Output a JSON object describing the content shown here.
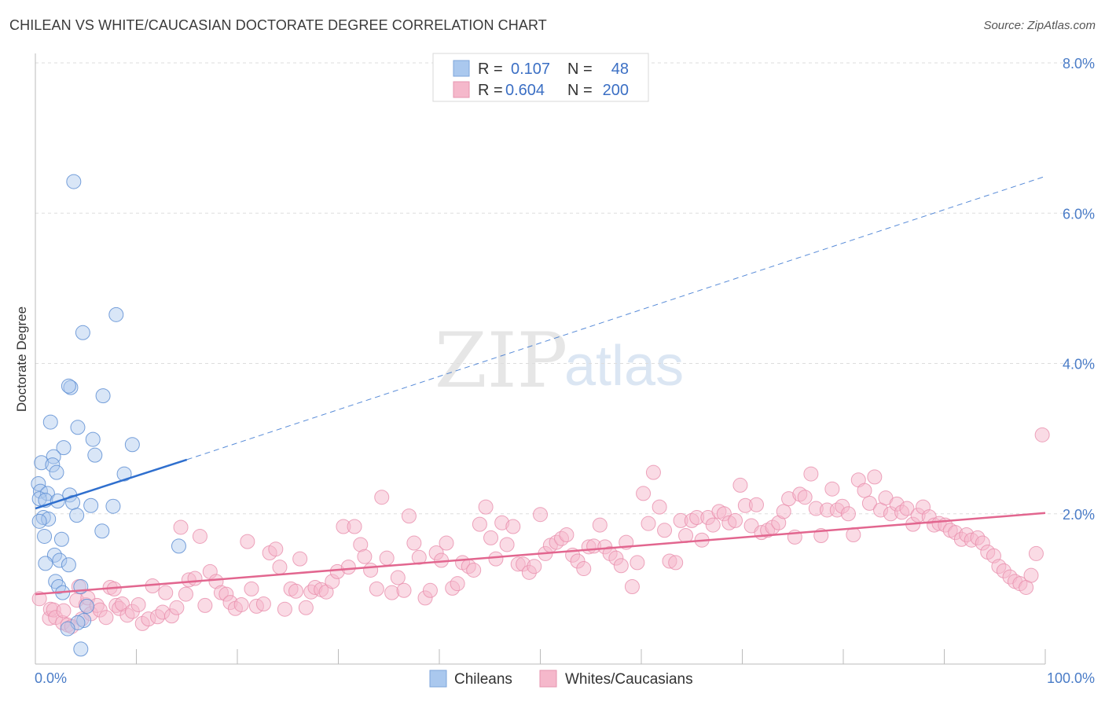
{
  "title": "CHILEAN VS WHITE/CAUCASIAN DOCTORATE DEGREE CORRELATION CHART",
  "source": "Source: ZipAtlas.com",
  "watermark": {
    "zip": "ZIP",
    "atlas": "atlas"
  },
  "colors": {
    "blue": "#4a7cc7",
    "blue_fill": "#aac8ee",
    "blue_line": "#2f6fce",
    "pink_fill": "#f5b8cb",
    "pink_line": "#e2668f",
    "grid": "#dddddd"
  },
  "legend": {
    "rows": [
      {
        "r_label": "R =",
        "r_value": "0.107",
        "n_label": "N =",
        "n_value": "48"
      },
      {
        "r_label": "R =",
        "r_value": "0.604",
        "n_label": "N =",
        "n_value": "200"
      }
    ]
  },
  "bottom_legend": {
    "items": [
      "Chileans",
      "Whites/Caucasians"
    ]
  },
  "chart_data": {
    "type": "scatter",
    "xlabel": "",
    "ylabel": "Doctorate Degree",
    "xlim": [
      0,
      100
    ],
    "ylim": [
      0,
      8.4
    ],
    "x_tick_labels": [
      "0.0%",
      "100.0%"
    ],
    "y_ticks": [
      2,
      4,
      6,
      8
    ],
    "y_tick_labels": [
      "2.0%",
      "4.0%",
      "6.0%",
      "8.0%"
    ],
    "grid": true,
    "legend_position": "top-center",
    "series": [
      {
        "name": "Chileans",
        "trend": {
          "x": [
            0,
            15
          ],
          "y": [
            2.07,
            2.72
          ],
          "extended_x": [
            15,
            100
          ],
          "extended_y": [
            2.72,
            6.49
          ]
        },
        "points": [
          [
            3.8,
            6.42
          ],
          [
            8.0,
            4.65
          ],
          [
            4.7,
            4.41
          ],
          [
            3.5,
            3.68
          ],
          [
            3.3,
            3.7
          ],
          [
            6.7,
            3.57
          ],
          [
            1.5,
            3.22
          ],
          [
            4.2,
            3.15
          ],
          [
            5.7,
            2.99
          ],
          [
            9.6,
            2.92
          ],
          [
            2.8,
            2.88
          ],
          [
            1.8,
            2.76
          ],
          [
            5.9,
            2.78
          ],
          [
            0.6,
            2.68
          ],
          [
            1.7,
            2.65
          ],
          [
            2.1,
            2.55
          ],
          [
            8.8,
            2.53
          ],
          [
            0.3,
            2.4
          ],
          [
            0.5,
            2.3
          ],
          [
            1.2,
            2.27
          ],
          [
            0.4,
            2.2
          ],
          [
            1.0,
            2.18
          ],
          [
            2.2,
            2.17
          ],
          [
            3.4,
            2.25
          ],
          [
            3.7,
            2.15
          ],
          [
            5.5,
            2.11
          ],
          [
            7.7,
            2.1
          ],
          [
            4.1,
            1.98
          ],
          [
            0.8,
            1.95
          ],
          [
            1.3,
            1.93
          ],
          [
            0.4,
            1.9
          ],
          [
            6.6,
            1.77
          ],
          [
            0.9,
            1.7
          ],
          [
            2.6,
            1.66
          ],
          [
            14.2,
            1.57
          ],
          [
            1.9,
            1.45
          ],
          [
            2.4,
            1.38
          ],
          [
            1.0,
            1.34
          ],
          [
            3.3,
            1.32
          ],
          [
            2.0,
            1.1
          ],
          [
            2.3,
            1.03
          ],
          [
            4.5,
            1.03
          ],
          [
            2.7,
            0.95
          ],
          [
            5.1,
            0.77
          ],
          [
            4.8,
            0.58
          ],
          [
            4.2,
            0.55
          ],
          [
            3.2,
            0.47
          ],
          [
            4.5,
            0.2
          ]
        ]
      },
      {
        "name": "Whites/Caucasians",
        "trend": {
          "x": [
            0,
            100
          ],
          "y": [
            0.93,
            2.01
          ]
        },
        "points": [
          [
            0.4,
            0.87
          ],
          [
            1.4,
            0.61
          ],
          [
            1.5,
            0.73
          ],
          [
            1.8,
            0.72
          ],
          [
            2.0,
            0.62
          ],
          [
            2.7,
            0.55
          ],
          [
            2.8,
            0.71
          ],
          [
            3.2,
            0.52
          ],
          [
            3.6,
            0.5
          ],
          [
            4.1,
            0.85
          ],
          [
            4.3,
            1.03
          ],
          [
            4.6,
            0.6
          ],
          [
            5.0,
            0.79
          ],
          [
            5.2,
            0.88
          ],
          [
            5.5,
            0.67
          ],
          [
            6.1,
            0.78
          ],
          [
            6.4,
            0.72
          ],
          [
            7.0,
            0.62
          ],
          [
            7.4,
            1.02
          ],
          [
            7.8,
            1.0
          ],
          [
            8.0,
            0.78
          ],
          [
            8.3,
            0.74
          ],
          [
            8.6,
            0.8
          ],
          [
            9.1,
            0.65
          ],
          [
            9.6,
            0.7
          ],
          [
            10.2,
            0.79
          ],
          [
            10.6,
            0.54
          ],
          [
            11.2,
            0.6
          ],
          [
            11.6,
            1.04
          ],
          [
            12.1,
            0.63
          ],
          [
            12.6,
            0.69
          ],
          [
            12.9,
            0.95
          ],
          [
            13.5,
            0.64
          ],
          [
            14.0,
            0.75
          ],
          [
            14.4,
            1.82
          ],
          [
            14.9,
            0.93
          ],
          [
            15.2,
            1.12
          ],
          [
            15.8,
            1.14
          ],
          [
            16.3,
            1.7
          ],
          [
            16.8,
            0.78
          ],
          [
            17.3,
            1.23
          ],
          [
            17.9,
            1.1
          ],
          [
            18.4,
            0.95
          ],
          [
            18.9,
            0.93
          ],
          [
            19.3,
            0.82
          ],
          [
            19.8,
            0.74
          ],
          [
            20.4,
            0.79
          ],
          [
            21.0,
            1.63
          ],
          [
            21.4,
            1.0
          ],
          [
            21.9,
            0.77
          ],
          [
            22.6,
            0.8
          ],
          [
            23.2,
            1.48
          ],
          [
            23.8,
            1.53
          ],
          [
            24.2,
            1.29
          ],
          [
            24.7,
            0.73
          ],
          [
            25.3,
            1.0
          ],
          [
            25.8,
            0.97
          ],
          [
            26.2,
            1.4
          ],
          [
            26.8,
            0.75
          ],
          [
            27.3,
            0.96
          ],
          [
            27.7,
            1.02
          ],
          [
            28.3,
            0.99
          ],
          [
            28.8,
            0.96
          ],
          [
            29.4,
            1.1
          ],
          [
            29.9,
            1.23
          ],
          [
            30.5,
            1.83
          ],
          [
            31.0,
            1.29
          ],
          [
            31.6,
            1.83
          ],
          [
            32.2,
            1.59
          ],
          [
            32.6,
            1.43
          ],
          [
            33.2,
            1.25
          ],
          [
            33.8,
            1.0
          ],
          [
            34.3,
            2.22
          ],
          [
            34.8,
            1.41
          ],
          [
            35.3,
            0.95
          ],
          [
            35.9,
            1.15
          ],
          [
            36.5,
            0.98
          ],
          [
            37.0,
            1.97
          ],
          [
            37.5,
            1.61
          ],
          [
            38.0,
            1.42
          ],
          [
            38.6,
            0.88
          ],
          [
            39.1,
            0.98
          ],
          [
            39.7,
            1.48
          ],
          [
            40.2,
            1.38
          ],
          [
            40.7,
            1.61
          ],
          [
            41.3,
            1.01
          ],
          [
            41.8,
            1.07
          ],
          [
            42.3,
            1.35
          ],
          [
            42.9,
            1.3
          ],
          [
            43.4,
            1.25
          ],
          [
            44.0,
            1.86
          ],
          [
            44.6,
            2.09
          ],
          [
            45.1,
            1.68
          ],
          [
            45.6,
            1.4
          ],
          [
            46.2,
            1.88
          ],
          [
            46.7,
            1.59
          ],
          [
            47.3,
            1.83
          ],
          [
            47.8,
            1.33
          ],
          [
            48.3,
            1.33
          ],
          [
            48.9,
            1.22
          ],
          [
            49.4,
            1.3
          ],
          [
            50.0,
            1.99
          ],
          [
            50.5,
            1.47
          ],
          [
            51.0,
            1.58
          ],
          [
            51.6,
            1.62
          ],
          [
            52.1,
            1.67
          ],
          [
            52.6,
            1.72
          ],
          [
            53.2,
            1.45
          ],
          [
            53.7,
            1.37
          ],
          [
            54.3,
            1.27
          ],
          [
            54.8,
            1.56
          ],
          [
            55.3,
            1.57
          ],
          [
            55.9,
            1.85
          ],
          [
            56.4,
            1.56
          ],
          [
            56.9,
            1.47
          ],
          [
            57.5,
            1.41
          ],
          [
            58.0,
            1.31
          ],
          [
            58.5,
            1.62
          ],
          [
            59.1,
            1.03
          ],
          [
            59.6,
            1.35
          ],
          [
            60.2,
            2.27
          ],
          [
            60.7,
            1.87
          ],
          [
            61.2,
            2.55
          ],
          [
            61.8,
            2.09
          ],
          [
            62.3,
            1.78
          ],
          [
            62.8,
            1.37
          ],
          [
            63.4,
            1.35
          ],
          [
            63.9,
            1.91
          ],
          [
            64.4,
            1.71
          ],
          [
            65.0,
            1.91
          ],
          [
            65.5,
            1.95
          ],
          [
            66.0,
            1.65
          ],
          [
            66.6,
            1.95
          ],
          [
            67.1,
            1.85
          ],
          [
            67.7,
            2.03
          ],
          [
            68.2,
            2.0
          ],
          [
            68.7,
            1.88
          ],
          [
            69.3,
            1.91
          ],
          [
            69.8,
            2.38
          ],
          [
            70.3,
            2.11
          ],
          [
            70.9,
            1.84
          ],
          [
            71.4,
            2.12
          ],
          [
            71.9,
            1.75
          ],
          [
            72.5,
            1.78
          ],
          [
            73.0,
            1.82
          ],
          [
            73.6,
            1.88
          ],
          [
            74.1,
            2.03
          ],
          [
            74.6,
            2.2
          ],
          [
            75.2,
            1.69
          ],
          [
            75.7,
            2.26
          ],
          [
            76.2,
            2.22
          ],
          [
            76.8,
            2.53
          ],
          [
            77.3,
            2.07
          ],
          [
            77.8,
            1.71
          ],
          [
            78.4,
            2.05
          ],
          [
            78.9,
            2.33
          ],
          [
            79.4,
            2.05
          ],
          [
            79.9,
            2.1
          ],
          [
            80.5,
            2.0
          ],
          [
            81.0,
            1.72
          ],
          [
            81.5,
            2.45
          ],
          [
            82.1,
            2.31
          ],
          [
            82.6,
            2.14
          ],
          [
            83.1,
            2.49
          ],
          [
            83.7,
            2.05
          ],
          [
            84.2,
            2.21
          ],
          [
            84.7,
            2.0
          ],
          [
            85.3,
            2.13
          ],
          [
            85.8,
            2.02
          ],
          [
            86.3,
            2.07
          ],
          [
            86.9,
            1.86
          ],
          [
            87.4,
            1.98
          ],
          [
            87.9,
            2.09
          ],
          [
            88.5,
            1.96
          ],
          [
            89.0,
            1.85
          ],
          [
            89.5,
            1.87
          ],
          [
            90.1,
            1.85
          ],
          [
            90.6,
            1.78
          ],
          [
            91.1,
            1.75
          ],
          [
            91.7,
            1.66
          ],
          [
            92.2,
            1.72
          ],
          [
            92.7,
            1.65
          ],
          [
            93.3,
            1.68
          ],
          [
            93.8,
            1.61
          ],
          [
            94.3,
            1.49
          ],
          [
            94.9,
            1.44
          ],
          [
            95.4,
            1.3
          ],
          [
            95.9,
            1.24
          ],
          [
            96.5,
            1.16
          ],
          [
            97.0,
            1.1
          ],
          [
            97.5,
            1.07
          ],
          [
            98.1,
            1.02
          ],
          [
            98.6,
            1.18
          ],
          [
            99.1,
            1.47
          ],
          [
            99.7,
            3.05
          ]
        ]
      }
    ]
  }
}
